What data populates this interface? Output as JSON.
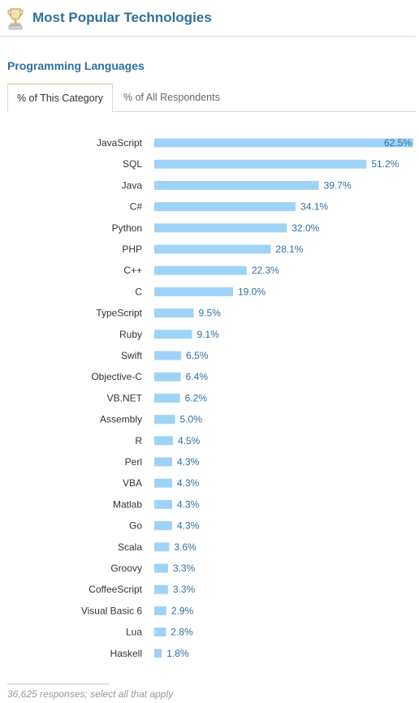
{
  "header": {
    "title": "Most Popular Technologies"
  },
  "section": {
    "title": "Programming Languages"
  },
  "tabs": [
    {
      "label": "% of This Category",
      "active": true
    },
    {
      "label": "% of All Respondents",
      "active": false
    }
  ],
  "colors": {
    "bar": "#9fd3f5",
    "label_text": "#333333",
    "value_text": "#2f6f9f",
    "title": "#2f6f9f",
    "tab_accent": "#e8b87a"
  },
  "icons": {
    "header": "trophy-icon"
  },
  "chart_data": {
    "type": "bar",
    "orientation": "horizontal",
    "title": "",
    "xlabel": "",
    "ylabel": "",
    "grid": false,
    "xlim": [
      0,
      62.5
    ],
    "categories": [
      "JavaScript",
      "SQL",
      "Java",
      "C#",
      "Python",
      "PHP",
      "C++",
      "C",
      "TypeScript",
      "Ruby",
      "Swift",
      "Objective-C",
      "VB.NET",
      "Assembly",
      "R",
      "Perl",
      "VBA",
      "Matlab",
      "Go",
      "Scala",
      "Groovy",
      "CoffeeScript",
      "Visual Basic 6",
      "Lua",
      "Haskell"
    ],
    "values": [
      62.5,
      51.2,
      39.7,
      34.1,
      32.0,
      28.1,
      22.3,
      19.0,
      9.5,
      9.1,
      6.5,
      6.4,
      6.2,
      5.0,
      4.5,
      4.3,
      4.3,
      4.3,
      4.3,
      3.6,
      3.3,
      3.3,
      2.9,
      2.8,
      1.8
    ],
    "value_labels": [
      "62.5%",
      "51.2%",
      "39.7%",
      "34.1%",
      "32.0%",
      "28.1%",
      "22.3%",
      "19.0%",
      "9.5%",
      "9.1%",
      "6.5%",
      "6.4%",
      "6.2%",
      "5.0%",
      "4.5%",
      "4.3%",
      "4.3%",
      "4.3%",
      "4.3%",
      "3.6%",
      "3.3%",
      "3.3%",
      "2.9%",
      "2.8%",
      "1.8%"
    ]
  },
  "footer": {
    "note": "36,625 responses; select all that apply"
  }
}
